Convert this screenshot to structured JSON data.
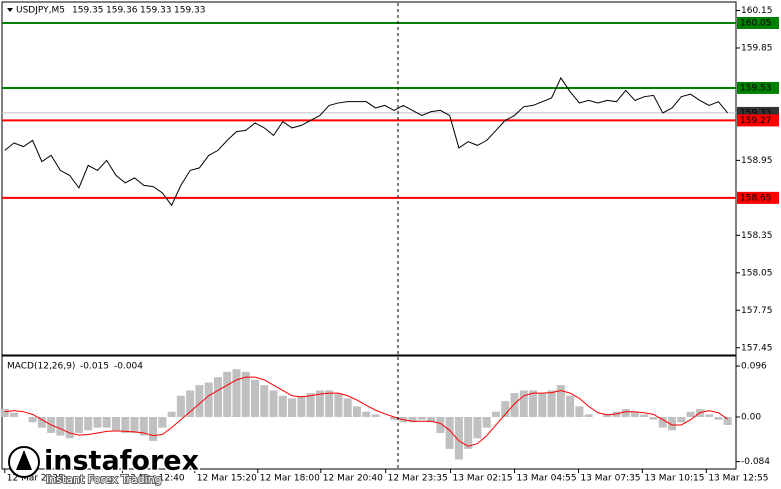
{
  "chart_data": [
    {
      "type": "line",
      "title": "USDJPY,M5",
      "ohlc": [
        159.35,
        159.36,
        159.33,
        159.33
      ],
      "color": "#000000",
      "values": [
        159.03,
        159.09,
        159.06,
        159.11,
        158.94,
        158.99,
        158.87,
        158.83,
        158.73,
        158.91,
        158.87,
        158.95,
        158.83,
        158.77,
        158.81,
        158.75,
        158.74,
        158.69,
        158.59,
        158.75,
        158.87,
        158.89,
        158.99,
        159.03,
        159.11,
        159.18,
        159.19,
        159.25,
        159.21,
        159.15,
        159.26,
        159.21,
        159.23,
        159.27,
        159.31,
        159.39,
        159.41,
        159.42,
        159.42,
        159.42,
        159.37,
        159.39,
        159.35,
        159.39,
        159.35,
        159.31,
        159.34,
        159.35,
        159.31,
        159.05,
        159.1,
        159.07,
        159.11,
        159.19,
        159.27,
        159.31,
        159.38,
        159.39,
        159.42,
        159.45,
        159.61,
        159.5,
        159.41,
        159.43,
        159.41,
        159.43,
        159.42,
        159.51,
        159.43,
        159.46,
        159.47,
        159.33,
        159.37,
        159.46,
        159.48,
        159.43,
        159.39,
        159.42,
        159.33
      ],
      "ylim": [
        157.4,
        160.21
      ],
      "yticks": [
        160.15,
        159.85,
        158.95,
        158.35,
        158.05,
        157.75,
        157.45
      ],
      "levels": [
        {
          "value": 160.05,
          "color": "#008000"
        },
        {
          "value": 159.53,
          "color": "#008000"
        },
        {
          "value": 159.27,
          "color": "#ff0000"
        },
        {
          "value": 158.65,
          "color": "#ff0000"
        }
      ],
      "current_price": {
        "value": 159.33,
        "color": "#c0c0c0"
      },
      "xlim": [
        -0.3,
        78.9
      ],
      "xticks": [
        {
          "value": 0,
          "label": "12 Mar 2025"
        },
        {
          "value": 12.7,
          "label": "12 Mar 12:40"
        },
        {
          "value": 20.5,
          "label": "12 Mar 15:20"
        },
        {
          "value": 27.3,
          "label": "12 Mar 18:00"
        },
        {
          "value": 34.1,
          "label": "12 Mar 20:40"
        },
        {
          "value": 41.1,
          "label": "12 Mar 23:35"
        },
        {
          "value": 48.1,
          "label": "13 Mar 02:15"
        },
        {
          "value": 55.0,
          "label": "13 Mar 04:55"
        },
        {
          "value": 61.9,
          "label": "13 Mar 07:35"
        },
        {
          "value": 68.8,
          "label": "13 Mar 10:15"
        },
        {
          "value": 75.7,
          "label": "13 Mar 12:55"
        }
      ]
    },
    {
      "type": "macd",
      "title": "MACD(12,26,9)",
      "last": [
        -0.015,
        -0.004
      ],
      "histogram": {
        "color": "#c0c0c0",
        "values": [
          0.015,
          0.008,
          0.0,
          -0.01,
          -0.02,
          -0.03,
          -0.035,
          -0.04,
          -0.03,
          -0.025,
          -0.02,
          -0.02,
          -0.025,
          -0.03,
          -0.03,
          -0.035,
          -0.045,
          -0.02,
          0.01,
          0.04,
          0.05,
          0.06,
          0.065,
          0.075,
          0.085,
          0.09,
          0.085,
          0.07,
          0.06,
          0.05,
          0.04,
          0.035,
          0.04,
          0.045,
          0.05,
          0.05,
          0.045,
          0.035,
          0.02,
          0.01,
          0.005,
          0.0,
          -0.005,
          -0.01,
          -0.01,
          -0.005,
          -0.01,
          -0.03,
          -0.06,
          -0.08,
          -0.06,
          -0.04,
          -0.02,
          0.01,
          0.03,
          0.045,
          0.05,
          0.05,
          0.045,
          0.05,
          0.06,
          0.04,
          0.02,
          0.005,
          0.0,
          0.005,
          0.01,
          0.015,
          0.01,
          0.005,
          -0.005,
          -0.02,
          -0.025,
          -0.01,
          0.01,
          0.015,
          0.005,
          -0.005,
          -0.015
        ]
      },
      "signal": {
        "color": "#ff0000",
        "values": [
          0.01,
          0.012,
          0.01,
          0.005,
          -0.005,
          -0.015,
          -0.022,
          -0.03,
          -0.034,
          -0.033,
          -0.03,
          -0.027,
          -0.026,
          -0.027,
          -0.028,
          -0.03,
          -0.035,
          -0.033,
          -0.02,
          -0.005,
          0.01,
          0.025,
          0.04,
          0.05,
          0.06,
          0.07,
          0.075,
          0.075,
          0.07,
          0.06,
          0.05,
          0.04,
          0.038,
          0.04,
          0.043,
          0.045,
          0.045,
          0.04,
          0.032,
          0.022,
          0.013,
          0.006,
          0.0,
          -0.005,
          -0.008,
          -0.008,
          -0.008,
          -0.012,
          -0.025,
          -0.045,
          -0.055,
          -0.05,
          -0.035,
          -0.015,
          0.005,
          0.025,
          0.04,
          0.045,
          0.045,
          0.046,
          0.05,
          0.045,
          0.035,
          0.02,
          0.008,
          0.004,
          0.006,
          0.01,
          0.01,
          0.008,
          0.005,
          -0.005,
          -0.015,
          -0.015,
          -0.005,
          0.008,
          0.012,
          0.008,
          -0.004
        ]
      },
      "ylim": [
        -0.096,
        0.113
      ],
      "yticks": [
        0.096,
        {
          "value": 0,
          "label": "0.00"
        },
        -0.084
      ]
    }
  ],
  "watermark": {
    "brand": "instaforex",
    "tagline": "Instant Forex Trading"
  }
}
